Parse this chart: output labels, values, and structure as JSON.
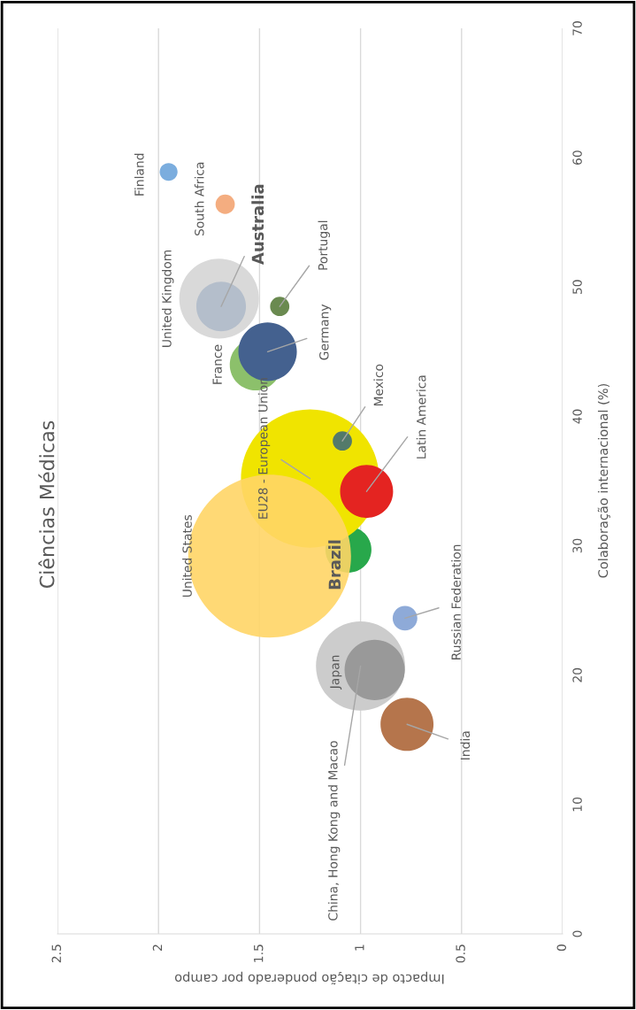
{
  "chart_data": {
    "type": "bubble",
    "title": "Ciências Médicas",
    "xlabel": "Impacto de citação ponderado por campo",
    "ylabel": "Colaboração internacional (%)",
    "xlim": [
      2.5,
      0
    ],
    "xticks": [
      2.5,
      2,
      1.5,
      1,
      0.5,
      0
    ],
    "ylim": [
      0,
      70
    ],
    "yticks": [
      0,
      10,
      20,
      30,
      40,
      50,
      60,
      70
    ],
    "grid": "x",
    "legend": false,
    "series": [
      {
        "name": "Finland",
        "color": "#7badde",
        "x": [
          1.95
        ],
        "values": [
          58.9
        ],
        "sizes": [
          0.012
        ]
      },
      {
        "name": "South Africa",
        "color": "#f4ad80",
        "x": [
          1.67
        ],
        "values": [
          56.4
        ],
        "sizes": [
          0.014
        ]
      },
      {
        "name": "United Kingdom",
        "color": "#d9d9d9",
        "x": [
          1.7
        ],
        "values": [
          49.1
        ],
        "sizes": [
          0.24
        ]
      },
      {
        "name": "Australia",
        "color": "#b4becb",
        "x": [
          1.69
        ],
        "values": [
          48.5
        ],
        "sizes": [
          0.093
        ]
      },
      {
        "name": "Portugal",
        "color": "#6a8a50",
        "x": [
          1.4
        ],
        "values": [
          48.5
        ],
        "sizes": [
          0.014
        ]
      },
      {
        "name": "France",
        "color": "#8cc06b",
        "x": [
          1.52
        ],
        "values": [
          44.0
        ],
        "sizes": [
          0.1
        ]
      },
      {
        "name": "Germany",
        "color": "#44618f",
        "x": [
          1.46
        ],
        "values": [
          45.0
        ],
        "sizes": [
          0.129
        ]
      },
      {
        "name": "Brazil",
        "color": "#28a84b",
        "x": [
          1.06
        ],
        "values": [
          29.7
        ],
        "sizes": [
          0.08
        ]
      },
      {
        "name": "EU28 - European Union",
        "color": "#f0e400",
        "x": [
          1.25
        ],
        "values": [
          35.2
        ],
        "sizes": [
          0.72
        ]
      },
      {
        "name": "Mexico",
        "color": "#537a6a",
        "x": [
          1.09
        ],
        "values": [
          38.1
        ],
        "sizes": [
          0.014
        ]
      },
      {
        "name": "Latin America",
        "color": "#e42421",
        "x": [
          0.97
        ],
        "values": [
          34.2
        ],
        "sizes": [
          0.106
        ]
      },
      {
        "name": "United States",
        "color": "#ffd566",
        "x": [
          1.45
        ],
        "values": [
          29.2
        ],
        "sizes": [
          1
        ]
      },
      {
        "name": "Russian Federation",
        "color": "#8eaad8",
        "x": [
          0.78
        ],
        "values": [
          24.4
        ],
        "sizes": [
          0.023
        ]
      },
      {
        "name": "China, Hong Kong and Macao",
        "color": "#cccccc",
        "x": [
          1.0
        ],
        "values": [
          20.7
        ],
        "sizes": [
          0.3
        ]
      },
      {
        "name": "Japan",
        "color": "#999999",
        "x": [
          0.93
        ],
        "values": [
          20.4
        ],
        "sizes": [
          0.137
        ]
      },
      {
        "name": "India",
        "color": "#b5754c",
        "x": [
          0.77
        ],
        "values": [
          16.2
        ],
        "sizes": [
          0.106
        ]
      }
    ]
  }
}
